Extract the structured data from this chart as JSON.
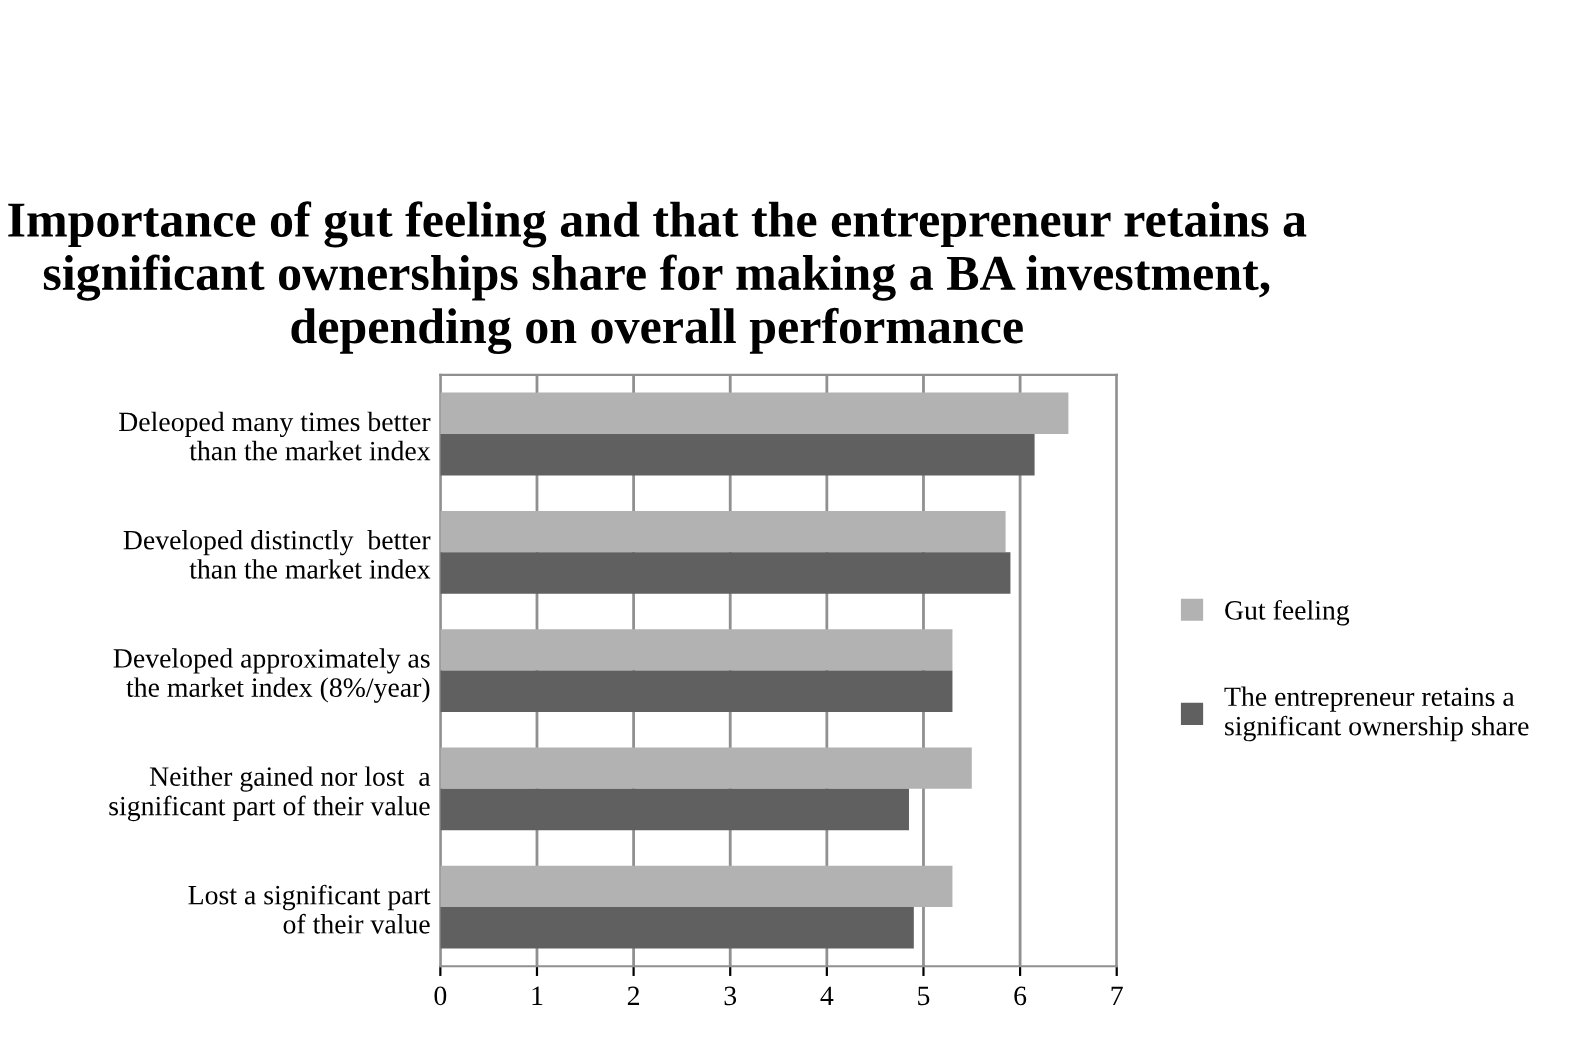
{
  "chart_data": {
    "type": "bar",
    "orientation": "horizontal",
    "title": "Importance of gut feeling and that the entrepreneur retains a significant ownerships share for making a BA investment, depending on overall performance",
    "categories": [
      "Deleoped many times better\nthan the market index",
      "Developed distinctly  better\nthan the market index",
      "Developed approximately as\nthe market index (8%/year)",
      "Neither gained nor lost  a\nsignificant part of their value",
      "Lost a significant part\nof their value"
    ],
    "series": [
      {
        "name": "Gut feeling",
        "color": "#b2b2b2",
        "values": [
          6.5,
          5.85,
          5.3,
          5.5,
          5.3
        ]
      },
      {
        "name": "The entrepreneur retains a\nsignificant ownership share",
        "color": "#606060",
        "values": [
          6.15,
          5.9,
          5.3,
          4.85,
          4.9
        ]
      }
    ],
    "xlim": [
      0,
      7
    ],
    "xticks": [
      0,
      1,
      2,
      3,
      4,
      5,
      6,
      7
    ],
    "grid": "x",
    "legend": "right"
  }
}
